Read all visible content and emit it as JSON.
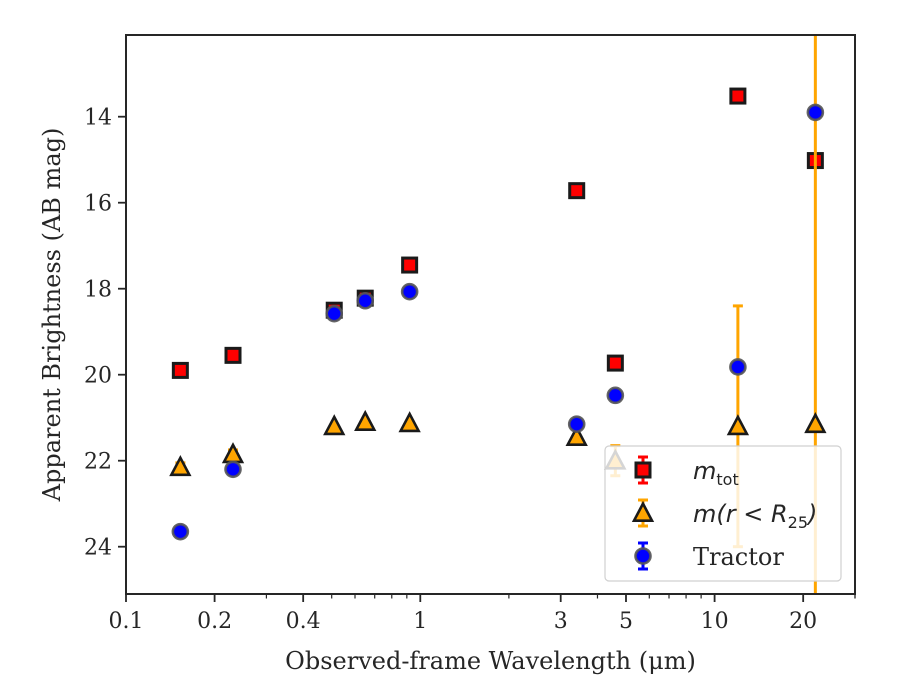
{
  "chart_data": {
    "type": "scatter",
    "xlabel": "Observed-frame Wavelength (μm)",
    "ylabel": "Apparent Brightness (AB mag)",
    "xscale": "log",
    "yaxis_inverted": true,
    "xlim": [
      0.1,
      30
    ],
    "ylim": [
      25.1,
      12.1
    ],
    "xticks": [
      {
        "value": 0.1,
        "label": "0.1"
      },
      {
        "value": 0.2,
        "label": "0.2"
      },
      {
        "value": 0.4,
        "label": "0.4"
      },
      {
        "value": 1,
        "label": "1"
      },
      {
        "value": 3,
        "label": "3"
      },
      {
        "value": 5,
        "label": "5"
      },
      {
        "value": 10,
        "label": "10"
      },
      {
        "value": 20,
        "label": "20"
      }
    ],
    "yticks": [
      {
        "value": 14,
        "label": "14"
      },
      {
        "value": 16,
        "label": "16"
      },
      {
        "value": 18,
        "label": "18"
      },
      {
        "value": 20,
        "label": "20"
      },
      {
        "value": 22,
        "label": "22"
      },
      {
        "value": 24,
        "label": "24"
      }
    ],
    "grid": false,
    "legend_position": "lower-right",
    "series": [
      {
        "name": "m_tot",
        "label_base": "m",
        "label_sub": "tot",
        "marker": "square",
        "color": "#ff0000",
        "edge_color": "#1a1a1a",
        "error_color": "#ff0000",
        "points": [
          {
            "x": 0.153,
            "y": 19.9
          },
          {
            "x": 0.231,
            "y": 19.55
          },
          {
            "x": 0.51,
            "y": 18.5
          },
          {
            "x": 0.65,
            "y": 18.22
          },
          {
            "x": 0.92,
            "y": 17.45
          },
          {
            "x": 3.4,
            "y": 15.72
          },
          {
            "x": 4.6,
            "y": 19.73
          },
          {
            "x": 12.0,
            "y": 13.52
          },
          {
            "x": 22.0,
            "y": 15.02
          }
        ]
      },
      {
        "name": "m(r < R_25)",
        "label_base": "m(r < R",
        "label_sub": "25",
        "label_end": ")",
        "marker": "triangle",
        "color": "#ffa500",
        "edge_color": "#1a1a1a",
        "error_color": "#ffa500",
        "points": [
          {
            "x": 0.153,
            "y": 22.15,
            "yerr": 0.1
          },
          {
            "x": 0.231,
            "y": 21.85,
            "yerr": 0.1
          },
          {
            "x": 0.51,
            "y": 21.2
          },
          {
            "x": 0.65,
            "y": 21.1
          },
          {
            "x": 0.92,
            "y": 21.13
          },
          {
            "x": 3.4,
            "y": 21.45
          },
          {
            "x": 4.6,
            "y": 22.0,
            "yerr": 0.35
          },
          {
            "x": 12.0,
            "y": 21.2,
            "yerr_up": 2.8,
            "yerr_down": 2.8
          },
          {
            "x": 22.0,
            "y": 21.15,
            "yerr_up": 9.5,
            "yerr_down": 9.5
          }
        ]
      },
      {
        "name": "Tractor",
        "label_base": "Tractor",
        "marker": "circle",
        "color": "#0000ff",
        "edge_color": "#555555",
        "error_color": "#0000ff",
        "points": [
          {
            "x": 0.153,
            "y": 23.65
          },
          {
            "x": 0.231,
            "y": 22.2
          },
          {
            "x": 0.51,
            "y": 18.58
          },
          {
            "x": 0.65,
            "y": 18.28
          },
          {
            "x": 0.92,
            "y": 18.07
          },
          {
            "x": 3.4,
            "y": 21.15
          },
          {
            "x": 4.6,
            "y": 20.48
          },
          {
            "x": 12.0,
            "y": 19.82
          },
          {
            "x": 22.0,
            "y": 13.9
          }
        ]
      }
    ]
  }
}
